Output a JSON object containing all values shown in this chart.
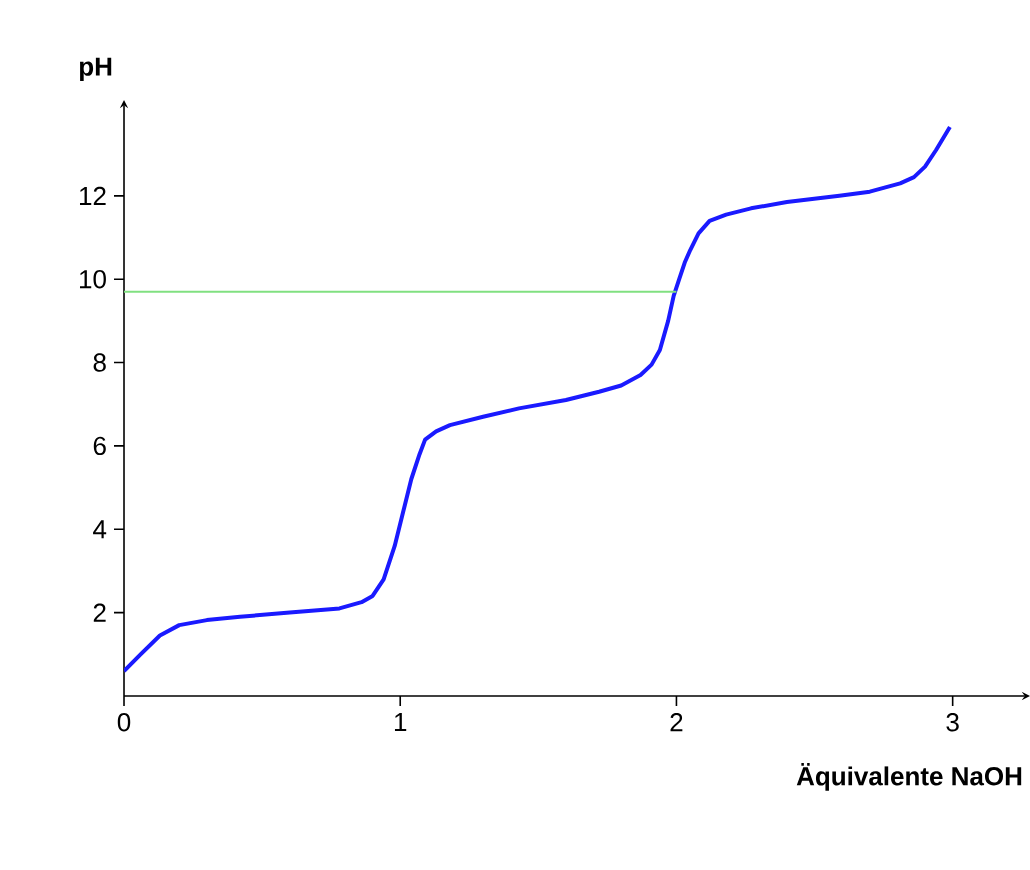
{
  "chart_data": {
    "type": "line",
    "xlabel": "Äquivalente NaOH",
    "ylabel": "pH",
    "xlim": [
      0,
      3.28
    ],
    "ylim": [
      0,
      14.3
    ],
    "xticks": [
      0,
      1,
      2,
      3
    ],
    "yticks": [
      2,
      4,
      6,
      8,
      10,
      12
    ],
    "grid": false,
    "marker": "none",
    "line_style": "solid",
    "series": [
      {
        "color": "#1a1aff",
        "x": [
          0,
          0.06,
          0.13,
          0.2,
          0.3,
          0.42,
          0.6,
          0.78,
          0.86,
          0.9,
          0.94,
          0.98,
          1.01,
          1.04,
          1.07,
          1.09,
          1.13,
          1.18,
          1.3,
          1.43,
          1.6,
          1.72,
          1.8,
          1.87,
          1.91,
          1.94,
          1.97,
          1.99,
          2.01,
          2.03,
          2.05,
          2.08,
          2.12,
          2.18,
          2.27,
          2.4,
          2.59,
          2.7,
          2.81,
          2.86,
          2.9,
          2.94,
          2.99
        ],
        "values": [
          0.6,
          1.0,
          1.45,
          1.7,
          1.82,
          1.9,
          2.0,
          2.1,
          2.25,
          2.4,
          2.8,
          3.6,
          4.4,
          5.2,
          5.8,
          6.15,
          6.35,
          6.5,
          6.7,
          6.9,
          7.1,
          7.3,
          7.45,
          7.7,
          7.95,
          8.3,
          9.0,
          9.6,
          10.0,
          10.4,
          10.7,
          11.1,
          11.4,
          11.55,
          11.7,
          11.85,
          12.0,
          12.1,
          12.3,
          12.45,
          12.7,
          13.1,
          13.65
        ]
      },
      {
        "color": "#80e080",
        "x": [
          0,
          2
        ],
        "values": [
          9.7,
          9.7
        ]
      }
    ]
  }
}
